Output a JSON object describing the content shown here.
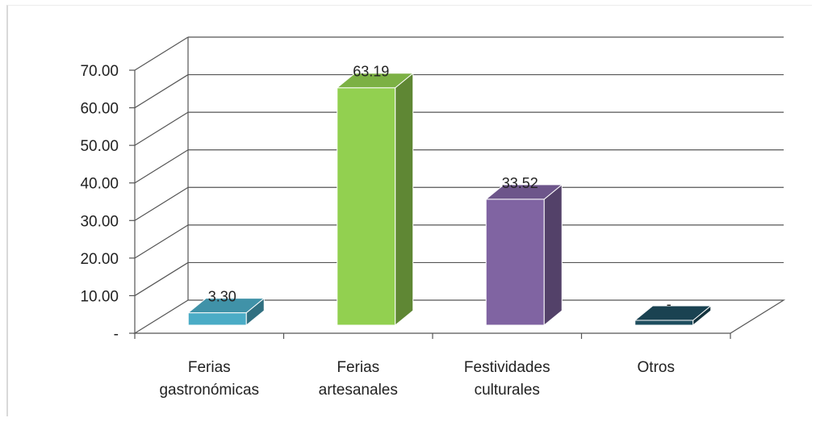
{
  "chart_data": {
    "type": "bar",
    "style": "3d-column",
    "categories": [
      [
        "Ferias",
        "gastronómicas"
      ],
      [
        "Ferias",
        "artesanales"
      ],
      [
        "Festividades",
        "culturales"
      ],
      [
        "Otros"
      ]
    ],
    "values": [
      3.3,
      63.19,
      33.52,
      0
    ],
    "data_labels": [
      "3.30",
      "63.19",
      "33.52",
      "-"
    ],
    "colors": [
      "#4bacc6",
      "#92d050",
      "#8064a2",
      "#1f4e5f"
    ],
    "y_ticks": [
      "-",
      "10.00",
      "20.00",
      "30.00",
      "40.00",
      "50.00",
      "60.00",
      "70.00"
    ],
    "ylim": [
      0,
      70
    ],
    "grid": true,
    "legend": "none"
  }
}
